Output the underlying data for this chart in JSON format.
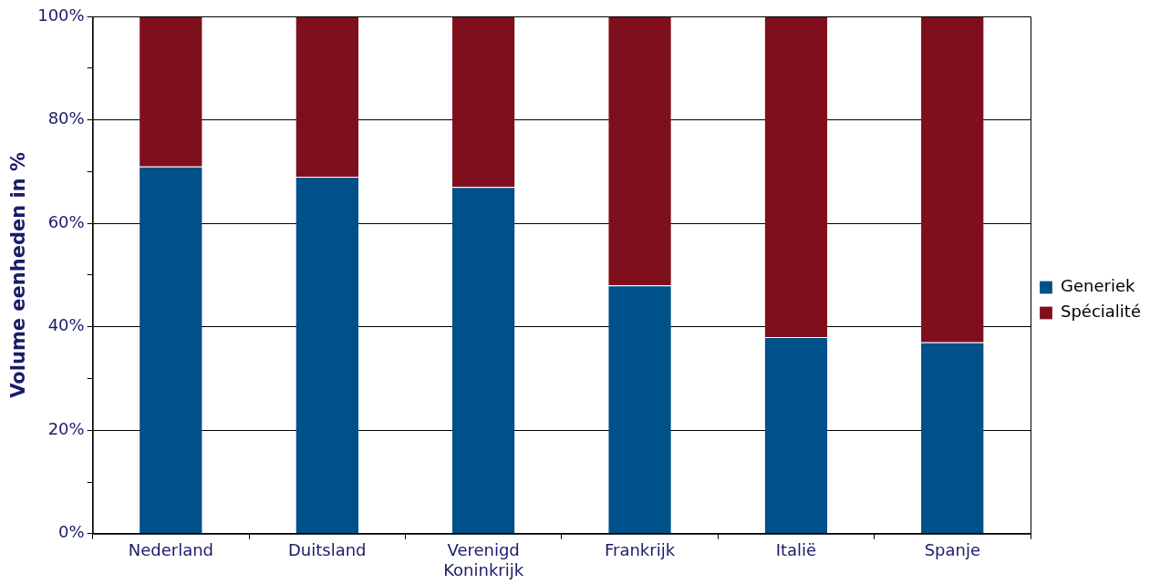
{
  "chart_data": {
    "type": "bar",
    "stacked": true,
    "ylabel": "Volume eenheden in %",
    "categories": [
      "Nederland",
      "Duitsland",
      "Verenigd Koninkrijk",
      "Frankrijk",
      "Italië",
      "Spanje"
    ],
    "series": [
      {
        "name": "Generiek",
        "color": "#00508a",
        "values": [
          71,
          69,
          67,
          48,
          38,
          37
        ]
      },
      {
        "name": "Spécialité",
        "color": "#800f1e",
        "values": [
          29,
          31,
          33,
          52,
          62,
          63
        ]
      }
    ],
    "ylim": [
      0,
      100
    ],
    "yticks": [
      {
        "value": 0,
        "label": "0%"
      },
      {
        "value": 10,
        "label": null
      },
      {
        "value": 20,
        "label": "20%"
      },
      {
        "value": 30,
        "label": null
      },
      {
        "value": 40,
        "label": "40%"
      },
      {
        "value": 50,
        "label": null
      },
      {
        "value": 60,
        "label": "60%"
      },
      {
        "value": 70,
        "label": null
      },
      {
        "value": 80,
        "label": "80%"
      },
      {
        "value": 90,
        "label": null
      },
      {
        "value": 100,
        "label": "100%"
      }
    ],
    "grid": "y",
    "legend": "right"
  }
}
